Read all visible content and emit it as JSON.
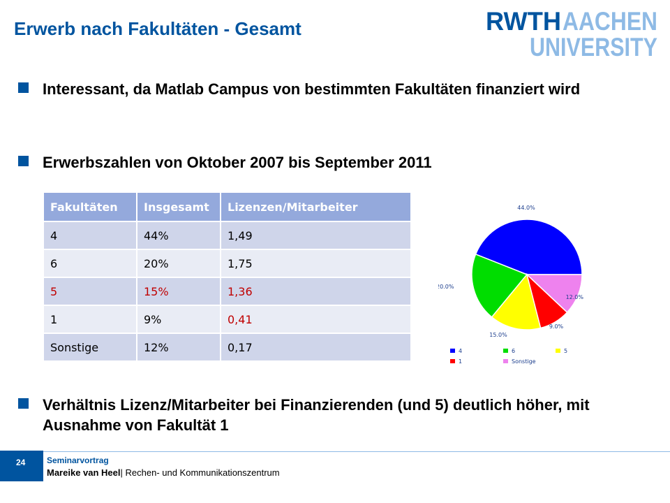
{
  "slide": {
    "title": "Erwerb nach Fakultäten - Gesamt",
    "logo": {
      "line1a": "RWTH",
      "line1b": "AACHEN",
      "line2": "UNIVERSITY"
    },
    "bullets": [
      "Interessant, da Matlab Campus von bestimmten Fakultäten finanziert wird",
      "Erwerbszahlen von Oktober 2007 bis September 2011",
      "Verhältnis Lizenz/Mitarbeiter  bei Finanzierenden (und 5) deutlich höher,  mit Ausnahme von Fakultät 1"
    ],
    "table": {
      "headers": [
        "Fakultäten",
        "Insgesamt",
        "Lizenzen/Mitarbeiter"
      ],
      "rows": [
        [
          "4",
          "44%",
          "1,49"
        ],
        [
          "6",
          "20%",
          "1,75"
        ],
        [
          "5",
          "15%",
          "1,36"
        ],
        [
          "1",
          "9%",
          "0,41"
        ],
        [
          "Sonstige",
          "12%",
          "0,17"
        ]
      ]
    },
    "footer": {
      "page_number": "24",
      "event": "Seminarvortrag",
      "author": "Mareike van Heel",
      "affiliation": "| Rechen- und Kommunikationszentrum"
    }
  },
  "chart_data": {
    "type": "pie",
    "slices": [
      {
        "label": "4",
        "value": 44.0,
        "display": "44.0%",
        "color": "#0000ff"
      },
      {
        "label": "6",
        "value": 20.0,
        "display": "20.0%",
        "color": "#00dd00"
      },
      {
        "label": "5",
        "value": 15.0,
        "display": "15.0%",
        "color": "#ffff00"
      },
      {
        "label": "1",
        "value": 9.0,
        "display": "9.0%",
        "color": "#ff0000"
      },
      {
        "label": "Sonstige",
        "value": 12.0,
        "display": "12.0%",
        "color": "#ee82ee"
      }
    ],
    "legend_order": [
      "4",
      "6",
      "5",
      "1",
      "Sonstige"
    ],
    "legend_position": "bottom"
  },
  "colors": {
    "accent": "#00549f",
    "table_header": "#94a9dc",
    "highlight": "#c00000"
  }
}
